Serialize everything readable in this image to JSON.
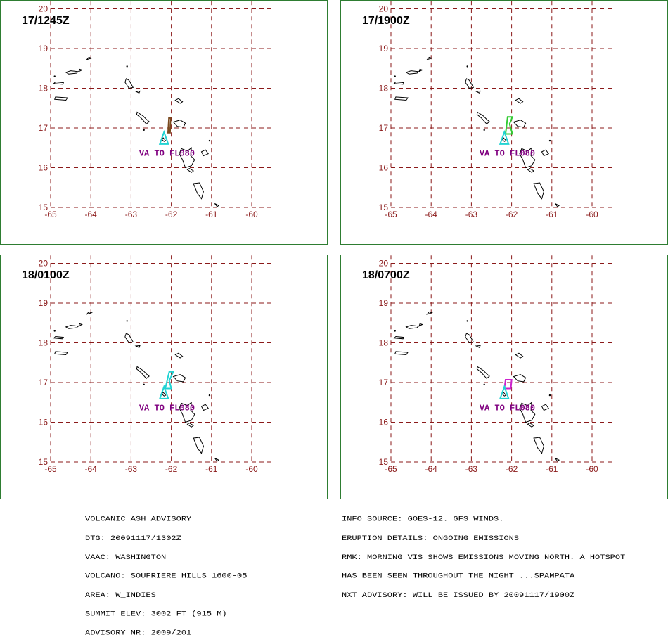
{
  "grid": {
    "lon_labels": [
      "-65",
      "-64",
      "-63",
      "-62",
      "-61",
      "-60"
    ],
    "lat_labels": [
      "15",
      "16",
      "17",
      "18",
      "19",
      "20"
    ],
    "lon_range": [
      -65,
      -59.5
    ],
    "lat_range": [
      15,
      20.2
    ],
    "grid_color": "#8b1a1a",
    "border_color": "#2e7d32",
    "coastline_color": "#000000",
    "volcano_color": "#22d3d3"
  },
  "panels": [
    {
      "time": "17/1245Z",
      "label": "VA TO FL080",
      "ash_color": "#7a4a1f",
      "ash_cloud": [
        [
          -62.08,
          16.88
        ],
        [
          -62.06,
          17.25
        ],
        [
          -62.02,
          17.25
        ],
        [
          -62.03,
          16.88
        ]
      ]
    },
    {
      "time": "17/1900Z",
      "label": "VA TO FL080",
      "ash_color": "#33cc33",
      "ash_cloud": [
        [
          -62.15,
          16.85
        ],
        [
          -62.1,
          17.28
        ],
        [
          -61.98,
          17.28
        ],
        [
          -62.05,
          17.1
        ],
        [
          -61.98,
          16.85
        ]
      ]
    },
    {
      "time": "18/0100Z",
      "label": "VA TO FL080",
      "ash_color": "#22d3d3",
      "ash_cloud": [
        [
          -62.15,
          16.85
        ],
        [
          -62.05,
          17.27
        ],
        [
          -61.95,
          17.27
        ],
        [
          -62.05,
          17.05
        ],
        [
          -62.0,
          16.85
        ]
      ]
    },
    {
      "time": "18/0700Z",
      "label": "VA TO FL080",
      "ash_color": "#cc22cc",
      "ash_cloud": [
        [
          -62.18,
          16.85
        ],
        [
          -62.15,
          17.07
        ],
        [
          -62.0,
          17.07
        ],
        [
          -62.02,
          16.85
        ]
      ]
    }
  ],
  "volcano": {
    "name": "SOUFRIERE HILLS",
    "lon": -62.18,
    "lat": 16.72
  },
  "advisory_left": [
    "VOLCANIC ASH ADVISORY",
    "DTG: 20091117/1302Z",
    "VAAC: WASHINGTON",
    "VOLCANO: SOUFRIERE HILLS 1600-05",
    "AREA: W_INDIES",
    "SUMMIT ELEV: 3002 FT (915 M)",
    "ADVISORY NR: 2009/201"
  ],
  "advisory_right": [
    "INFO SOURCE: GOES-12. GFS WINDS.",
    "ERUPTION DETAILS: ONGOING EMISSIONS",
    "RMK: MORNING VIS SHOWS EMISSIONS MOVING NORTH. A HOTSPOT",
    "HAS BEEN SEEN THROUGHOUT THE NIGHT ...SPAMPATA",
    "NXT ADVISORY: WILL BE ISSUED BY 20091117/1900Z"
  ]
}
